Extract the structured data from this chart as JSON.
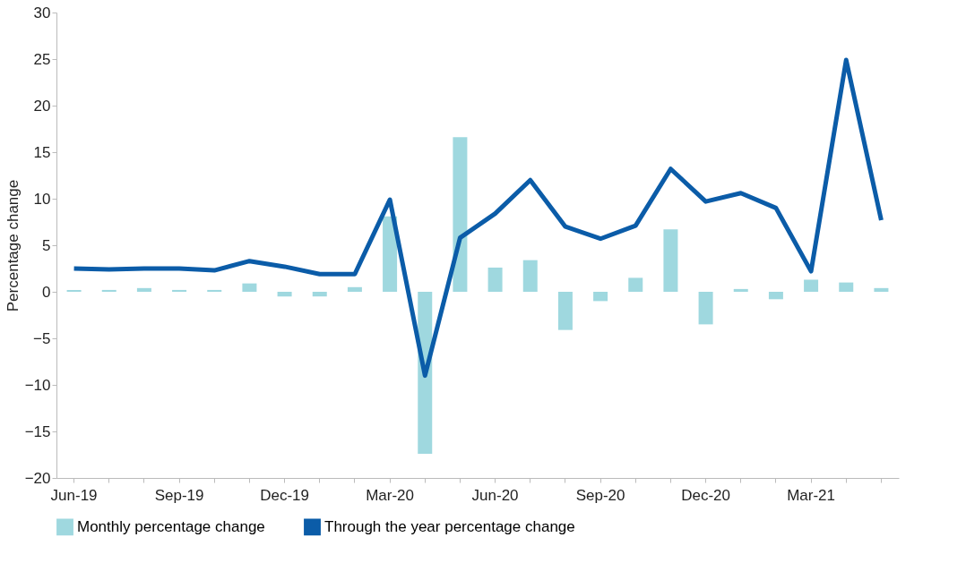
{
  "chart_data": {
    "type": "bar",
    "ylabel": "Percentage change",
    "categories": [
      "Jun-19",
      null,
      null,
      "Sep-19",
      null,
      null,
      "Dec-19",
      null,
      null,
      "Mar-20",
      null,
      null,
      "Jun-20",
      null,
      null,
      "Sep-20",
      null,
      null,
      "Dec-20",
      null,
      null,
      "Mar-21",
      null,
      null
    ],
    "series": [
      {
        "name": "Monthly percentage change",
        "color": "#9fd8df",
        "values": [
          0.2,
          0.2,
          0.4,
          0.2,
          0.2,
          0.9,
          -0.5,
          -0.5,
          0.5,
          8.1,
          -17.4,
          16.6,
          2.6,
          3.4,
          -4.1,
          -1.0,
          1.5,
          6.7,
          -3.5,
          0.3,
          -0.8,
          1.3,
          1.0,
          0.4
        ]
      },
      {
        "name": "Through the year percentage change",
        "type": "line",
        "color": "#0b5ca8",
        "values": [
          2.5,
          2.4,
          2.5,
          2.5,
          2.3,
          3.3,
          2.7,
          1.9,
          1.9,
          9.9,
          -9.0,
          5.8,
          8.4,
          12.0,
          7.0,
          5.7,
          7.1,
          13.2,
          9.7,
          10.6,
          9.0,
          2.2,
          24.9,
          7.7
        ]
      }
    ],
    "ylim": [
      -20,
      30
    ],
    "yticks": [
      -20,
      -15,
      -10,
      -5,
      0,
      5,
      10,
      15,
      20,
      25,
      30
    ],
    "grid": false,
    "legend": "bottom",
    "line_style": "solid",
    "marker": "none"
  }
}
